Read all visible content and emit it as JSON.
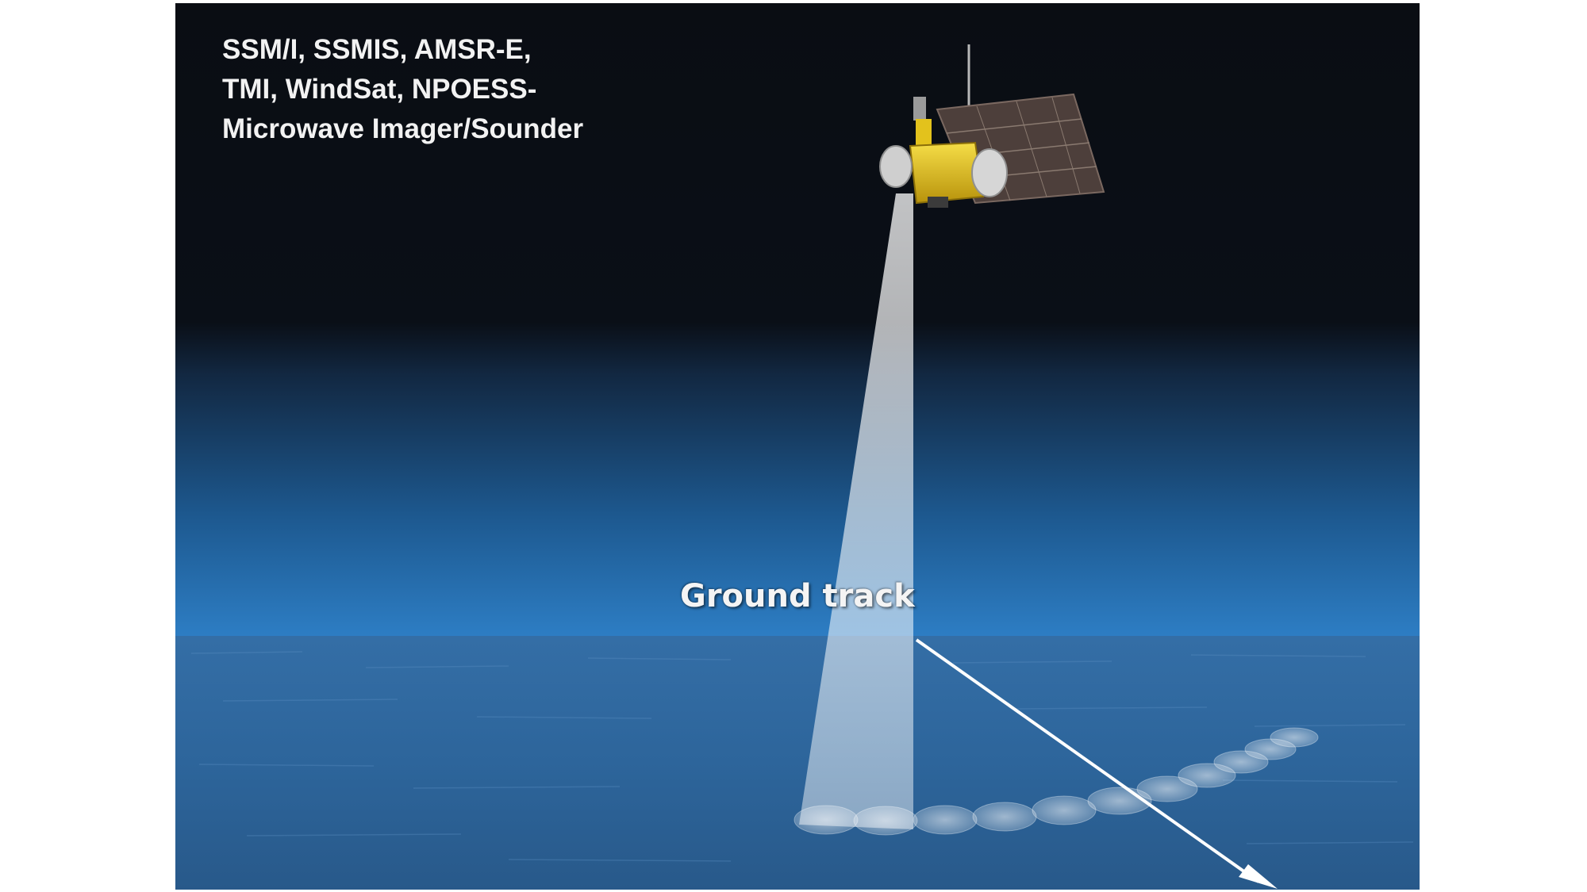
{
  "sensor_lines": [
    "SSM/I, SSMIS, AMSR-E,",
    "TMI, WindSat, NPOESS-",
    "Microwave Imager/Sounder"
  ],
  "ground_track_label": "Ground track",
  "colors": {
    "space": "#0a0d13",
    "sky_horizon": "#3d8fd6",
    "ocean": "#2f6fa8",
    "satellite_body": "#e3c21c",
    "solar_panel": "#5a4a44",
    "beam": "#e8eef6",
    "arrow": "#ffffff"
  },
  "icons": {
    "satellite": "satellite-icon",
    "solar_panel": "solar-panel-icon",
    "scan_beam": "scan-beam-icon",
    "footprints": "footprint-ellipses",
    "direction_arrow": "arrow-icon"
  }
}
